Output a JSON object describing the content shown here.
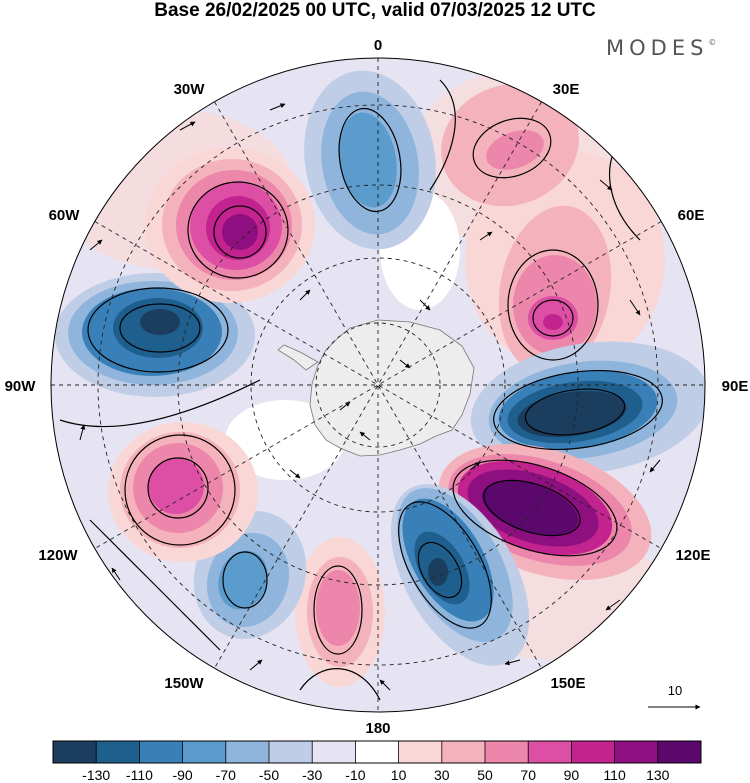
{
  "title": "Base 26/02/2025 00 UTC, valid 07/03/2025 12 UTC",
  "brand": "MODES",
  "brand_mark": "©",
  "longitude_labels": {
    "lon_0": "0",
    "lon_30e": "30E",
    "lon_60e": "60E",
    "lon_90e": "90E",
    "lon_120e": "120E",
    "lon_150e": "150E",
    "lon_180": "180",
    "lon_150w": "150W",
    "lon_120w": "120W",
    "lon_90w": "90W",
    "lon_60w": "60W",
    "lon_30w": "30W"
  },
  "vector_reference": {
    "label": "10",
    "value": 10
  },
  "colorbar": {
    "colors": [
      "#1b3d5e",
      "#1f5f8e",
      "#3a80b8",
      "#5c9ccc",
      "#8fb5dc",
      "#bfcde6",
      "#e6e4f2",
      "#ffffff",
      "#f9d7d7",
      "#f4b2bc",
      "#ec86ab",
      "#dd4fa4",
      "#c2238f",
      "#8e0f7f",
      "#5b086c"
    ],
    "tick_labels": [
      "-130",
      "-110",
      "-90",
      "-70",
      "-50",
      "-30",
      "-10",
      "10",
      "30",
      "50",
      "70",
      "90",
      "110",
      "130"
    ]
  },
  "anomaly_centers": [
    {
      "lon": 20,
      "sign": "positive",
      "value": 60
    },
    {
      "lon": 50,
      "sign": "positive",
      "value": 70
    },
    {
      "lon": 95,
      "sign": "negative",
      "value": -120
    },
    {
      "lon": 118,
      "sign": "positive",
      "value": 130
    },
    {
      "lon": 150,
      "sign": "negative",
      "value": -100
    },
    {
      "lon": -170,
      "sign": "positive",
      "value": 70
    },
    {
      "lon": -145,
      "sign": "negative",
      "value": -70
    },
    {
      "lon": -115,
      "sign": "positive",
      "value": 90
    },
    {
      "lon": -80,
      "sign": "negative",
      "value": -110
    },
    {
      "lon": -35,
      "sign": "positive",
      "value": 120
    },
    {
      "lon": 3,
      "sign": "negative",
      "value": -70
    }
  ]
}
